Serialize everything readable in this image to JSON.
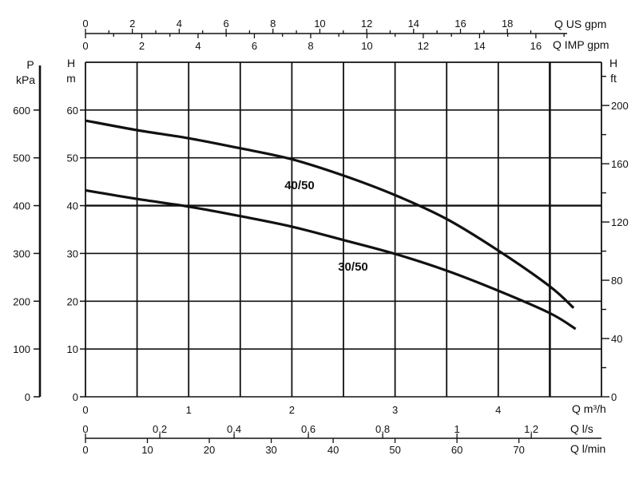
{
  "chart_data": {
    "type": "line",
    "x_axis": {
      "label": "Q m³/h",
      "range": [
        0,
        5
      ],
      "ticks": [
        0,
        1,
        2,
        3,
        4
      ],
      "gridlines_every": 0.5
    },
    "y_axis_left": {
      "label_line1": "H",
      "label_line2": "m",
      "range": [
        0,
        70
      ],
      "ticks": [
        0,
        10,
        20,
        30,
        40,
        50,
        60
      ]
    },
    "y_axis_pressure": {
      "label_line1": "P",
      "label_line2": "kPa",
      "ticks": [
        0,
        100,
        200,
        300,
        400,
        500,
        600
      ]
    },
    "y_axis_right": {
      "label_line1": "H",
      "label_line2": "ft",
      "ticks": [
        0,
        40,
        80,
        120,
        160,
        200
      ]
    },
    "top_axis_us": {
      "label": "Q US gpm",
      "ticks": [
        0,
        2,
        4,
        6,
        8,
        10,
        12,
        14,
        16,
        18
      ]
    },
    "top_axis_imp": {
      "label": "Q IMP gpm",
      "ticks": [
        0,
        2,
        4,
        6,
        8,
        10,
        12,
        14,
        16
      ]
    },
    "bottom_axis_ls": {
      "label": "Q l/s",
      "ticks": [
        "0",
        "0,2",
        "0,4",
        "0,6",
        "0,8",
        "1",
        "1,2"
      ]
    },
    "bottom_axis_lmin": {
      "label": "Q l/min",
      "ticks": [
        0,
        10,
        20,
        30,
        40,
        50,
        60,
        70
      ]
    },
    "grid": true,
    "series": [
      {
        "name": "40/50",
        "x": [
          0,
          0.5,
          1,
          1.5,
          2,
          2.5,
          3,
          3.5,
          4,
          4.5,
          4.73
        ],
        "y": [
          57.8,
          55.8,
          54.1,
          52,
          49.7,
          46.3,
          42.2,
          37.2,
          30.6,
          23.1,
          18.6
        ],
        "color": "#111111"
      },
      {
        "name": "30/50",
        "x": [
          0,
          0.5,
          1,
          1.5,
          2,
          2.5,
          3,
          3.5,
          4,
          4.5,
          4.75
        ],
        "y": [
          43.2,
          41.4,
          39.8,
          37.8,
          35.6,
          32.8,
          29.9,
          26.4,
          22.2,
          17.5,
          14.2
        ],
        "color": "#111111"
      }
    ]
  }
}
